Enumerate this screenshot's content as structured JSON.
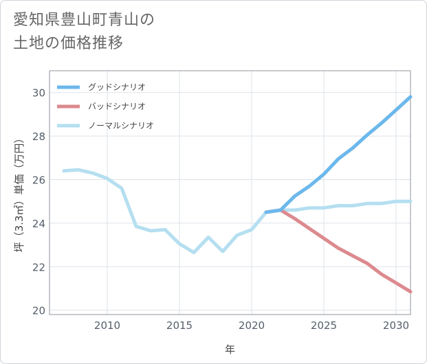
{
  "title": {
    "line1": "愛知県豊山町青山の",
    "line2": "土地の価格推移"
  },
  "chart_data": {
    "type": "line",
    "xlabel": "年",
    "ylabel": "坪（3.3㎡）単価（万円）",
    "xlim": [
      2006,
      2031
    ],
    "ylim": [
      19.8,
      31
    ],
    "xticks": [
      2010,
      2015,
      2020,
      2025,
      2030
    ],
    "yticks": [
      20,
      22,
      24,
      26,
      28,
      30
    ],
    "grid": true,
    "legend_position": "top-left",
    "series": [
      {
        "name": "グッドシナリオ",
        "color": "#6bb8ec",
        "x": [
          2021,
          2022,
          2023,
          2024,
          2025,
          2026,
          2027,
          2028,
          2029,
          2030,
          2031
        ],
        "y": [
          24.5,
          24.6,
          25.25,
          25.7,
          26.25,
          26.95,
          27.45,
          28.05,
          28.6,
          29.2,
          29.8
        ]
      },
      {
        "name": "バッドシナリオ",
        "color": "#dc8a8e",
        "x": [
          2021,
          2022,
          2023,
          2024,
          2025,
          2026,
          2027,
          2028,
          2029,
          2030,
          2031
        ],
        "y": [
          24.5,
          24.6,
          24.2,
          23.75,
          23.3,
          22.85,
          22.5,
          22.15,
          21.65,
          21.25,
          20.85
        ]
      },
      {
        "name": "ノーマルシナリオ",
        "color": "#b5dff0",
        "x": [
          2007,
          2008,
          2009,
          2010,
          2011,
          2012,
          2013,
          2014,
          2015,
          2016,
          2017,
          2018,
          2019,
          2020,
          2021,
          2022,
          2023,
          2024,
          2025,
          2026,
          2027,
          2028,
          2029,
          2030,
          2031
        ],
        "y": [
          26.4,
          26.45,
          26.3,
          26.05,
          25.6,
          23.85,
          23.65,
          23.7,
          23.05,
          22.65,
          23.35,
          22.7,
          23.45,
          23.7,
          24.5,
          24.6,
          24.6,
          24.7,
          24.7,
          24.8,
          24.8,
          24.9,
          24.9,
          25.0,
          25.0
        ]
      }
    ]
  }
}
